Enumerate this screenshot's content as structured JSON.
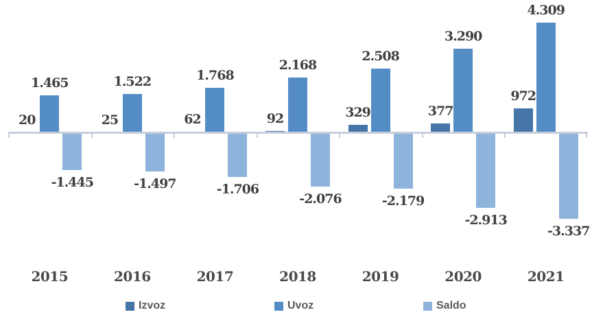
{
  "chart_data": {
    "type": "bar",
    "title": "",
    "categories": [
      "2015",
      "2016",
      "2017",
      "2018",
      "2019",
      "2020",
      "2021"
    ],
    "series": [
      {
        "name": "Izvoz",
        "color": "#4676A8",
        "values": [
          20,
          25,
          62,
          92,
          329,
          377,
          972
        ],
        "labels": [
          "20",
          "25",
          "62",
          "92",
          "329",
          "377",
          "972"
        ]
      },
      {
        "name": "Uvoz",
        "color": "#548CC5",
        "values": [
          1465,
          1522,
          1768,
          2168,
          2508,
          3290,
          4309
        ],
        "labels": [
          "1.465",
          "1.522",
          "1.768",
          "2.168",
          "2.508",
          "3.290",
          "4.309"
        ]
      },
      {
        "name": "Saldo",
        "color": "#8FB4DC",
        "values": [
          -1445,
          -1497,
          -1706,
          -2076,
          -2179,
          -2913,
          -3337
        ],
        "labels": [
          "-1.445",
          "-1.497",
          "-1.706",
          "-2.076",
          "-2.179",
          "-2.913",
          "-3.337"
        ]
      }
    ],
    "ylim": [
      -3400,
      4400
    ],
    "xlabel": "",
    "ylabel": "",
    "gridlines": false,
    "y_axis_tick_labels": false,
    "data_labels_shown": true,
    "number_format": "thousands separator is a dot",
    "legend_position": "bottom",
    "colors": {
      "value_label": "#404040",
      "year_label": "#4A4A4A",
      "legend_text": "#595959",
      "axis_line": "#C5CEDA",
      "background": "#FFFFFF"
    }
  }
}
